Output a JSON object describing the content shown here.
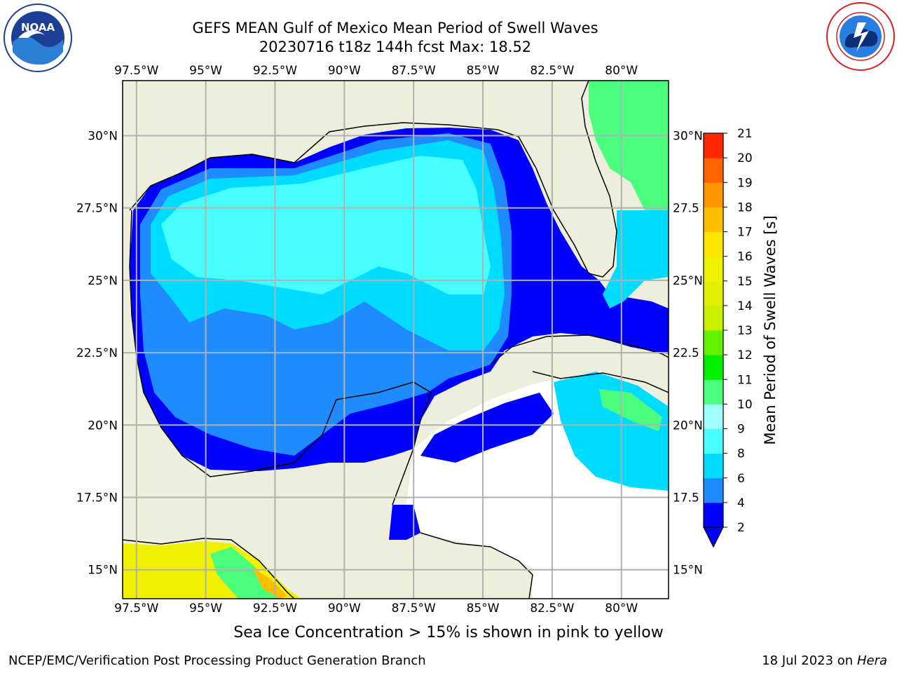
{
  "header": {
    "title_line1": "GEFS MEAN Gulf of Mexico Mean Period of Swell Waves",
    "title_line2": "20230716 t18z 144h fcst   Max: 18.52"
  },
  "logos": {
    "left": "noaa-logo",
    "right": "nws-logo"
  },
  "map": {
    "lon_ticks": [
      "97.5°W",
      "95°W",
      "92.5°W",
      "90°W",
      "87.5°W",
      "85°W",
      "82.5°W",
      "80°W"
    ],
    "lon_values": [
      -97.5,
      -95,
      -92.5,
      -90,
      -87.5,
      -85,
      -82.5,
      -80
    ],
    "lat_ticks_left": [
      "30°N",
      "27.5°N",
      "25°N",
      "22.5°N",
      "20°N",
      "17.5°N",
      "15°N"
    ],
    "lat_ticks_right": [
      "30°N",
      "27.5",
      "25°N",
      "22.5",
      "20°N",
      "17.5",
      "15°N"
    ],
    "lat_values": [
      30,
      27.5,
      25,
      22.5,
      20,
      17.5,
      15
    ],
    "lon_range": [
      -98,
      -78.3
    ],
    "lat_range": [
      14,
      31.9
    ],
    "grid": true,
    "colors": {
      "land": "#eeeedc",
      "ocean_no_data": "#ffffff"
    }
  },
  "colorbar": {
    "label": "Mean Period of Swell Waves [s]",
    "ticks": [
      "2",
      "4",
      "6",
      "8",
      "9",
      "10",
      "11",
      "12",
      "13",
      "14",
      "15",
      "16",
      "17",
      "18",
      "19",
      "20",
      "21"
    ],
    "colors": [
      "#0000ff",
      "#1e8cff",
      "#00dcff",
      "#48ffff",
      "#a0ffff",
      "#4bff7d",
      "#00f000",
      "#64f000",
      "#c8f000",
      "#e1f000",
      "#f0f000",
      "#ffe600",
      "#ffbe00",
      "#ff9600",
      "#ff6400",
      "#ff2800",
      "#ff0000"
    ],
    "under_color": "#0000ff"
  },
  "footer": {
    "note": "Sea Ice Concentration > 15% is shown in pink to yellow",
    "credit": "NCEP/EMC/Verification Post Processing Product Generation Branch",
    "date": "18 Jul 2023 on ",
    "machine": "Hera"
  }
}
